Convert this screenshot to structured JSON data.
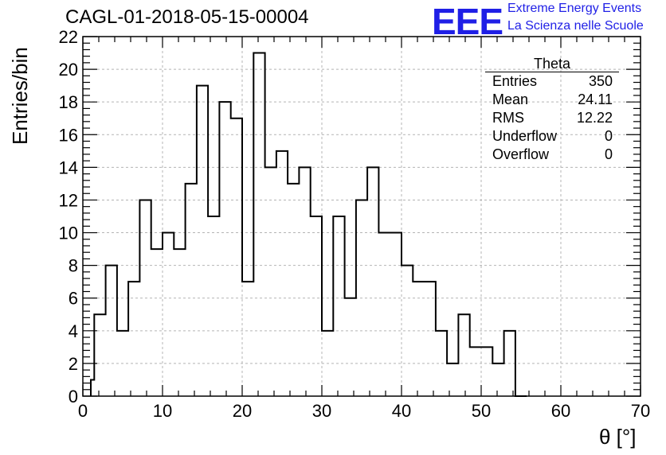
{
  "header": {
    "run_title": "CAGL-01-2018-05-15-00004",
    "logo_text": "EEE",
    "logo_line1": "Extreme Energy Events",
    "logo_line2": "La Scienza nelle Scuole"
  },
  "stats": {
    "title": "Theta",
    "rows": [
      {
        "label": "Entries",
        "value": "350"
      },
      {
        "label": "Mean",
        "value": "24.11"
      },
      {
        "label": "RMS",
        "value": "12.22"
      },
      {
        "label": "Underflow",
        "value": "0"
      },
      {
        "label": "Overflow",
        "value": "0"
      }
    ]
  },
  "chart_data": {
    "type": "bar",
    "histogram": true,
    "title": "CAGL-01-2018-05-15-00004",
    "xlabel": "θ [°]",
    "ylabel": "Entries/bin",
    "xlim": [
      0,
      70
    ],
    "ylim": [
      0,
      22
    ],
    "bin_width": 1.43,
    "bin_edges": [
      1.0,
      1.43,
      2.86,
      4.29,
      5.71,
      7.14,
      8.57,
      10.0,
      11.43,
      12.86,
      14.29,
      15.71,
      17.14,
      18.57,
      20.0,
      21.43,
      22.86,
      24.29,
      25.71,
      27.14,
      28.57,
      30.0,
      31.43,
      32.86,
      34.29,
      35.71,
      37.14,
      38.57,
      40.0,
      41.43,
      42.86,
      44.29,
      45.71,
      47.14,
      48.57,
      50.0,
      51.43,
      52.86,
      54.29
    ],
    "values": [
      1,
      5,
      8,
      4,
      7,
      12,
      9,
      10,
      9,
      13,
      19,
      11,
      18,
      17,
      7,
      21,
      14,
      15,
      13,
      14,
      11,
      4,
      11,
      6,
      12,
      14,
      10,
      10,
      8,
      7,
      7,
      4,
      2,
      5,
      3,
      3,
      2,
      4,
      0
    ],
    "xticks": [
      0,
      10,
      20,
      30,
      40,
      50,
      60,
      70
    ],
    "yticks": [
      0,
      2,
      4,
      6,
      8,
      10,
      12,
      14,
      16,
      18,
      20,
      22
    ],
    "grid": true,
    "legend": "top-right"
  }
}
